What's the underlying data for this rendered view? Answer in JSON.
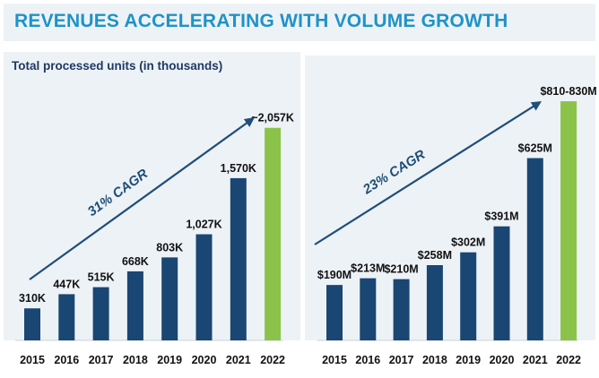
{
  "header": {
    "title": "REVENUES ACCELERATING WITH VOLUME GROWTH"
  },
  "colors": {
    "bar": "#1a4673",
    "highlight": "#8bc34a",
    "arrow": "#1f4e79",
    "title": "#1e93c8"
  },
  "chart_data": [
    {
      "type": "bar",
      "title": "Total processed units (in thousands)",
      "categories": [
        "2015",
        "2016",
        "2017",
        "2018",
        "2019",
        "2020",
        "2021",
        "2022"
      ],
      "values": [
        310,
        447,
        515,
        668,
        803,
        1027,
        1570,
        2057
      ],
      "data_labels": [
        "310K",
        "447K",
        "515K",
        "668K",
        "803K",
        "1,027K",
        "1,570K",
        "~2,057K"
      ],
      "highlight_index": 7,
      "annotation": "31% CAGR",
      "ylim": [
        0,
        2150
      ],
      "xlabel": "",
      "ylabel": ""
    },
    {
      "type": "bar",
      "title": "",
      "categories": [
        "2015",
        "2016",
        "2017",
        "2018",
        "2019",
        "2020",
        "2021",
        "2022"
      ],
      "values": [
        190,
        213,
        210,
        258,
        302,
        391,
        625,
        820
      ],
      "data_labels": [
        "$190M",
        "$213M",
        "$210M",
        "$258M",
        "$302M",
        "$391M",
        "$625M",
        "$810-830M"
      ],
      "highlight_index": 7,
      "annotation": "23% CAGR",
      "ylim": [
        0,
        860
      ],
      "xlabel": "",
      "ylabel": ""
    }
  ]
}
